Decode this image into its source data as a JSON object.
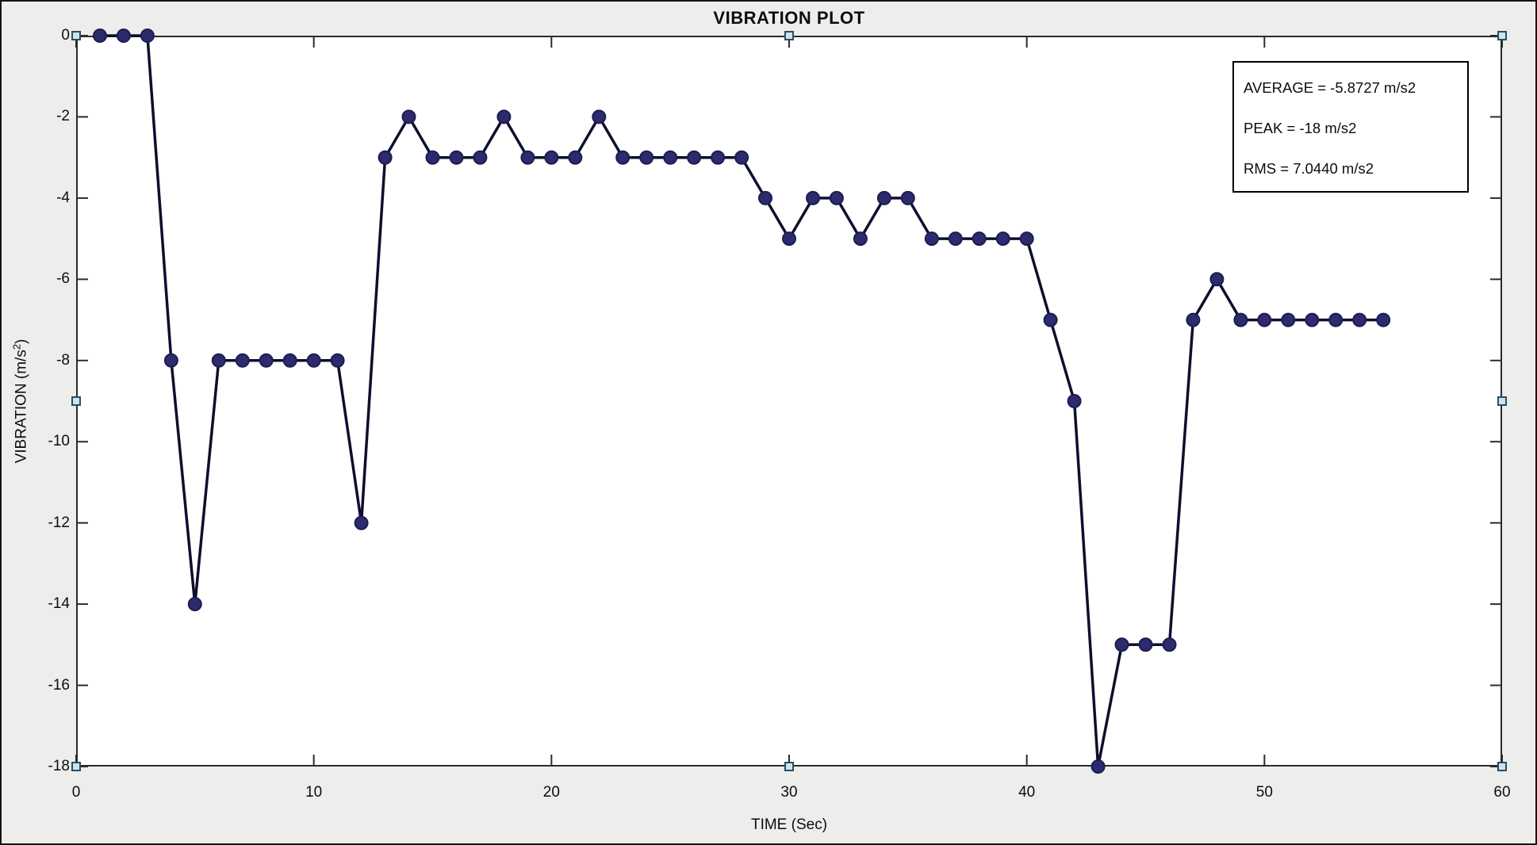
{
  "figure": {
    "background_color": "#ededeb",
    "frame_color": "#141414"
  },
  "chart_data": {
    "type": "line",
    "title": "VIBRATION PLOT",
    "xlabel": "TIME (Sec)",
    "ylabel": "VIBRATION (m/s²)",
    "ylabel_parts": {
      "prefix": "VIBRATION (m/s",
      "sup": "2",
      "suffix": ")"
    },
    "x": [
      1,
      2,
      3,
      4,
      5,
      6,
      7,
      8,
      9,
      10,
      11,
      12,
      13,
      14,
      15,
      16,
      17,
      18,
      19,
      20,
      21,
      22,
      23,
      24,
      25,
      26,
      27,
      28,
      29,
      30,
      31,
      32,
      33,
      34,
      35,
      36,
      37,
      38,
      39,
      40,
      41,
      42,
      43,
      44,
      45,
      46,
      47,
      48,
      49,
      50,
      51,
      52,
      53,
      54,
      55
    ],
    "y": [
      0,
      0,
      0,
      -8,
      -14,
      -8,
      -8,
      -8,
      -8,
      -8,
      -8,
      -12,
      -3,
      -2,
      -3,
      -3,
      -3,
      -2,
      -3,
      -3,
      -3,
      -2,
      -3,
      -3,
      -3,
      -3,
      -3,
      -3,
      -4,
      -5,
      -4,
      -4,
      -5,
      -4,
      -4,
      -5,
      -5,
      -5,
      -5,
      -5,
      -7,
      -9,
      -18,
      -15,
      -15,
      -15,
      -7,
      -6,
      -7,
      -7,
      -7,
      -7,
      -7,
      -7,
      -7
    ],
    "xlim": [
      0,
      60
    ],
    "ylim": [
      -18,
      0
    ],
    "xticks": [
      0,
      10,
      20,
      30,
      40,
      50,
      60
    ],
    "yticks": [
      0,
      -2,
      -4,
      -6,
      -8,
      -10,
      -12,
      -14,
      -16,
      -18
    ],
    "grid": false,
    "legend_position": "none",
    "line_color": "#0e0e2e",
    "marker_color": "#2b2b6d",
    "marker_edge_color": "#1d1d52",
    "axis_color": "#2b2b2b",
    "annotation_box": {
      "lines": [
        "AVERAGE = -5.8727 m/s2",
        "PEAK = -18 m/s2",
        "RMS = 7.0440 m/s2"
      ]
    }
  },
  "selection_handles": {
    "fill_color": "#c9e6f0",
    "border_color": "#2d4c62",
    "positions": [
      "top-left",
      "top-center",
      "top-right",
      "mid-left",
      "mid-right",
      "bottom-left",
      "bottom-center",
      "bottom-right"
    ]
  }
}
